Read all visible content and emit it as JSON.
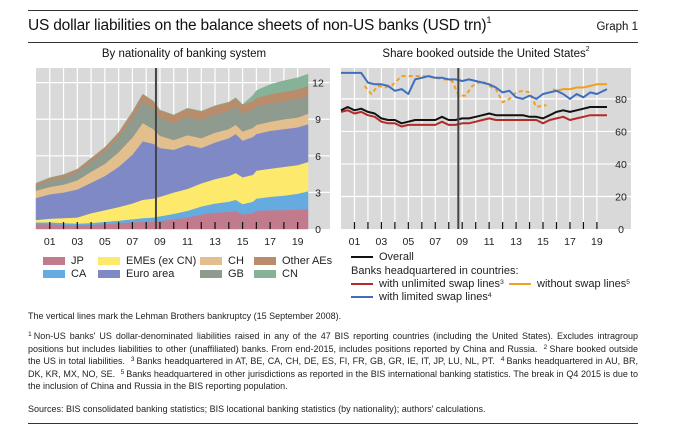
{
  "header": {
    "title": "US dollar liabilities on the balance sheets of non-US banks (USD trn)",
    "title_sup": "1",
    "graph_label": "Graph 1"
  },
  "chart_data": [
    {
      "type": "area",
      "stacked": true,
      "title": "By nationality of banking system",
      "xlabel": "",
      "ylabel": "USD trn",
      "x_start": 2000.0,
      "x_end": 2019.75,
      "x_tick_labels": [
        "01",
        "03",
        "05",
        "07",
        "09",
        "11",
        "13",
        "15",
        "17",
        "19"
      ],
      "x_ticks": [
        2001,
        2002,
        2003,
        2004,
        2005,
        2006,
        2007,
        2008,
        2009,
        2010,
        2011,
        2012,
        2013,
        2014,
        2015,
        2016,
        2017,
        2018,
        2019
      ],
      "ylim": [
        0,
        13.2
      ],
      "y_ticks": [
        0,
        3,
        6,
        9,
        12
      ],
      "y_axis_side": "right",
      "grid": true,
      "vline": {
        "x": 2008.71,
        "label": "Lehman Brothers bankruptcy"
      },
      "x": [
        2000.0,
        2001.0,
        2002.0,
        2003.0,
        2004.0,
        2005.0,
        2006.0,
        2007.0,
        2007.75,
        2008.5,
        2009.0,
        2010.0,
        2011.0,
        2012.0,
        2013.0,
        2014.0,
        2014.5,
        2015.0,
        2015.75,
        2016.0,
        2017.0,
        2018.0,
        2019.0,
        2019.75
      ],
      "series": [
        {
          "name": "JP",
          "color": "#c27b8c",
          "values": [
            0.4,
            0.4,
            0.35,
            0.3,
            0.35,
            0.4,
            0.5,
            0.55,
            0.6,
            0.6,
            0.65,
            0.8,
            0.95,
            1.2,
            1.35,
            1.4,
            1.5,
            1.2,
            1.3,
            1.5,
            1.55,
            1.55,
            1.6,
            1.65
          ]
        },
        {
          "name": "CA",
          "color": "#66abe0",
          "values": [
            0.15,
            0.15,
            0.15,
            0.15,
            0.15,
            0.2,
            0.2,
            0.25,
            0.3,
            0.35,
            0.4,
            0.45,
            0.55,
            0.65,
            0.75,
            0.85,
            0.9,
            0.85,
            0.95,
            1.0,
            1.1,
            1.2,
            1.3,
            1.45
          ]
        },
        {
          "name": "EMEs (ex CN)",
          "color": "#fde96c",
          "values": [
            0.2,
            0.3,
            0.4,
            0.5,
            0.8,
            0.95,
            1.1,
            1.3,
            1.5,
            1.55,
            1.6,
            1.75,
            1.8,
            1.9,
            2.0,
            2.1,
            2.2,
            2.2,
            2.2,
            2.3,
            2.3,
            2.35,
            2.35,
            2.4
          ]
        },
        {
          "name": "Euro area",
          "color": "#7f89c6",
          "values": [
            1.8,
            2.0,
            2.1,
            2.3,
            2.5,
            2.8,
            3.3,
            4.0,
            4.8,
            4.5,
            4.0,
            3.5,
            3.6,
            2.9,
            3.0,
            3.1,
            3.2,
            3.0,
            3.1,
            3.0,
            3.1,
            3.1,
            3.1,
            3.1
          ]
        },
        {
          "name": "CH",
          "color": "#e3bf8e",
          "values": [
            0.6,
            0.6,
            0.65,
            0.75,
            0.9,
            1.0,
            1.2,
            1.4,
            1.5,
            1.2,
            1.0,
            0.8,
            0.8,
            0.8,
            0.8,
            0.75,
            0.75,
            0.75,
            0.75,
            0.75,
            0.75,
            0.8,
            0.8,
            0.85
          ]
        },
        {
          "name": "GB",
          "color": "#8f9b8e",
          "values": [
            0.4,
            0.5,
            0.55,
            0.65,
            0.8,
            1.0,
            1.2,
            1.6,
            1.8,
            1.7,
            1.5,
            1.4,
            1.5,
            1.5,
            1.5,
            1.5,
            1.5,
            1.5,
            1.5,
            1.5,
            1.5,
            1.5,
            1.5,
            1.5
          ]
        },
        {
          "name": "Other AEs",
          "color": "#b98c6b",
          "values": [
            0.2,
            0.25,
            0.25,
            0.25,
            0.3,
            0.35,
            0.4,
            0.5,
            0.55,
            0.6,
            0.6,
            0.65,
            0.7,
            0.7,
            0.7,
            0.7,
            0.7,
            0.7,
            0.7,
            0.7,
            0.75,
            0.75,
            0.8,
            0.8
          ]
        },
        {
          "name": "CN",
          "color": "#86b297",
          "values": [
            0,
            0,
            0,
            0,
            0,
            0,
            0,
            0,
            0,
            0,
            0,
            0,
            0,
            0,
            0,
            0,
            0,
            0,
            0.45,
            0.6,
            0.8,
            0.9,
            0.95,
            0.95
          ]
        }
      ],
      "legend": [
        {
          "name": "JP",
          "color": "#c27b8c"
        },
        {
          "name": "CA",
          "color": "#66abe0"
        },
        {
          "name": "EMEs (ex CN)",
          "color": "#fde96c"
        },
        {
          "name": "Euro area",
          "color": "#7f89c6"
        },
        {
          "name": "CH",
          "color": "#e3bf8e"
        },
        {
          "name": "GB",
          "color": "#8f9b8e"
        },
        {
          "name": "Other AEs",
          "color": "#b98c6b"
        },
        {
          "name": "CN",
          "color": "#86b297"
        }
      ]
    },
    {
      "type": "line",
      "title": "Share booked outside the United States",
      "title_sup": "2",
      "xlabel": "",
      "ylabel": "%",
      "x_start": 2000.0,
      "x_end": 2019.75,
      "x_tick_labels": [
        "01",
        "03",
        "05",
        "07",
        "09",
        "11",
        "13",
        "15",
        "17",
        "19"
      ],
      "x_ticks": [
        2001,
        2002,
        2003,
        2004,
        2005,
        2006,
        2007,
        2008,
        2009,
        2010,
        2011,
        2012,
        2013,
        2014,
        2015,
        2016,
        2017,
        2018,
        2019
      ],
      "ylim": [
        0,
        99
      ],
      "y_ticks": [
        0,
        20,
        40,
        60,
        80
      ],
      "y_axis_side": "right",
      "grid": true,
      "vline": {
        "x": 2008.71,
        "label": "Lehman Brothers bankruptcy"
      },
      "series": [
        {
          "name": "Overall",
          "color": "#111111",
          "dashed": false,
          "x": [
            2000,
            2000.5,
            2001,
            2001.5,
            2002,
            2002.5,
            2003,
            2003.5,
            2004,
            2004.5,
            2005,
            2005.5,
            2006,
            2006.5,
            2007,
            2007.5,
            2008,
            2008.5,
            2009,
            2009.5,
            2010,
            2010.5,
            2011,
            2011.5,
            2012,
            2012.5,
            2013,
            2013.5,
            2014,
            2014.5,
            2015,
            2015.5,
            2016,
            2016.5,
            2017,
            2017.5,
            2018,
            2018.5,
            2019,
            2019.75
          ],
          "values": [
            73,
            75,
            73,
            74,
            72,
            71,
            68,
            67,
            67,
            65,
            66,
            67,
            67,
            67,
            67,
            69,
            67,
            67,
            68,
            68,
            69,
            70,
            71,
            70,
            70,
            70,
            70,
            70,
            69,
            69,
            68,
            70,
            72,
            73,
            72,
            73,
            74,
            75,
            75,
            75
          ]
        },
        {
          "name": "with unlimited swap lines",
          "sup": "3",
          "color": "#b22a2a",
          "dashed": false,
          "x": [
            2000,
            2000.5,
            2001,
            2001.5,
            2002,
            2002.5,
            2003,
            2003.5,
            2004,
            2004.5,
            2005,
            2005.5,
            2006,
            2006.5,
            2007,
            2007.5,
            2008,
            2008.5,
            2009,
            2009.5,
            2010,
            2010.5,
            2011,
            2011.5,
            2012,
            2012.5,
            2013,
            2013.5,
            2014,
            2014.5,
            2015,
            2015.5,
            2016,
            2016.5,
            2017,
            2017.5,
            2018,
            2018.5,
            2019,
            2019.75
          ],
          "values": [
            72,
            73,
            71,
            72,
            70,
            69,
            66,
            65,
            65,
            63,
            64,
            64,
            64,
            64,
            64,
            66,
            64,
            64,
            65,
            65,
            66,
            67,
            68,
            67,
            67,
            67,
            67,
            67,
            67,
            67,
            65,
            67,
            68,
            69,
            67,
            68,
            69,
            70,
            70,
            70
          ]
        },
        {
          "name": "with limited swap lines",
          "sup": "4",
          "color": "#3e6fbe",
          "dashed": false,
          "x": [
            2000,
            2000.5,
            2001,
            2001.5,
            2002,
            2002.5,
            2003,
            2003.5,
            2004,
            2004.5,
            2005,
            2005.5,
            2006,
            2006.5,
            2007,
            2007.5,
            2008,
            2008.5,
            2009,
            2009.5,
            2010,
            2010.5,
            2011,
            2011.5,
            2012,
            2012.5,
            2013,
            2013.5,
            2014,
            2014.5,
            2015,
            2015.5,
            2016,
            2016.5,
            2017,
            2017.5,
            2018,
            2018.5,
            2019,
            2019.75
          ],
          "values": [
            96,
            96,
            96,
            96,
            90,
            89,
            89,
            88,
            85,
            86,
            83,
            92,
            93,
            94,
            93,
            93,
            92,
            92,
            91,
            92,
            91,
            90,
            89,
            87,
            84,
            85,
            81,
            80,
            82,
            80,
            83,
            84,
            85,
            83,
            80,
            83,
            81,
            84,
            83,
            86
          ]
        },
        {
          "name": "without swap lines",
          "sup": "5",
          "color": "#f0a020",
          "dashed": true,
          "x": [
            2001.75,
            2002.25,
            2002.75,
            2003.25,
            2003.75,
            2004.5,
            2005.5,
            2006.25,
            2007,
            2007.75,
            2008.25,
            2008.75,
            2009.25,
            2009.75,
            2010.5,
            2011.0,
            2011.5,
            2012.0,
            2012.5,
            2013.0,
            2013.5,
            2014.0,
            2014.5,
            2015.0,
            2015.25
          ],
          "values": [
            88,
            83,
            88,
            87,
            88,
            94,
            94,
            94,
            93,
            92,
            91,
            82,
            82,
            88,
            91,
            88,
            86,
            78,
            80,
            84,
            85,
            84,
            75,
            76,
            76
          ]
        },
        {
          "name": "without swap lines (post-break)",
          "color": "#f0a020",
          "dashed": false,
          "x": [
            2015.75,
            2016,
            2016.5,
            2017,
            2017.5,
            2018,
            2018.5,
            2019,
            2019.75
          ],
          "values": [
            86,
            85,
            86,
            86,
            87,
            87,
            88,
            89,
            89
          ]
        }
      ],
      "legend": {
        "overall": "Overall",
        "group_heading": "Banks headquartered in countries:",
        "items": [
          {
            "name": "with unlimited swap lines",
            "sup": "3",
            "color": "#b22a2a"
          },
          {
            "name": "without swap lines",
            "sup": "5",
            "color": "#f0a020"
          },
          {
            "name": "with limited swap lines",
            "sup": "4",
            "color": "#3e6fbe"
          }
        ]
      }
    }
  ],
  "notes": {
    "vline_note": "The vertical lines mark the Lehman Brothers bankruptcy (15 September 2008).",
    "fn1": "Non-US banks' US dollar-denominated liabilities raised in any of the 47 BIS reporting countries (including the United States). Excludes intragroup positions but includes liabilities to other (unaffiliated) banks. From end-2015, includes positions reported by China and Russia.",
    "fn2": "Share booked outside the US in total liabilities.",
    "fn3": "Banks headquartered in AT, BE, CA, CH, DE, ES, FI, FR, GB, GR, IE, IT, JP, LU, NL, PT.",
    "fn4": "Banks headquartered in AU, BR, DK, KR, MX, NO, SE.",
    "fn5": "Banks headquartered in other jurisdictions as reported in the BIS international banking statistics. The break in Q4 2015 is due to the inclusion of China and Russia in the BIS reporting population.",
    "sources": "Sources: BIS consolidated banking statistics; BIS locational banking statistics (by nationality); authors' calculations."
  }
}
